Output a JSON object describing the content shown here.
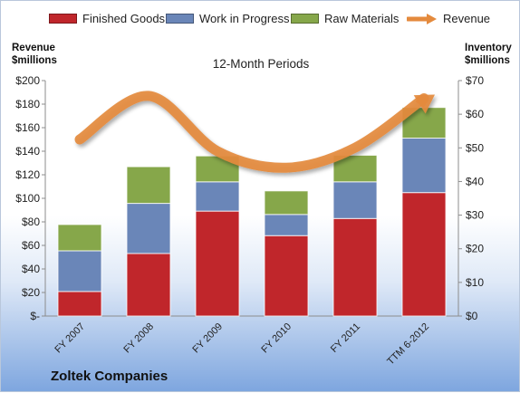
{
  "legend": {
    "finished": "Finished Goods",
    "wip": "Work in Progress",
    "raw": "Raw Materials",
    "revenue": "Revenue"
  },
  "axis": {
    "left_title_1": "Revenue",
    "left_title_2": "$millions",
    "right_title_1": "Inventory",
    "right_title_2": "$millions"
  },
  "title": "12-Month Periods",
  "company": "Zoltek Companies",
  "colors": {
    "finished": "#c0262b",
    "wip": "#6a86b8",
    "raw": "#86a74a",
    "revenue": "#e48a3d"
  },
  "chart_data": {
    "type": "bar",
    "stacked": true,
    "categories": [
      "FY 2007",
      "FY 2008",
      "FY 2009",
      "FY 2010",
      "FY 2011",
      "TTM 6-2012"
    ],
    "series": [
      {
        "name": "Finished Goods",
        "axis": "right",
        "values": [
          7.3,
          18.6,
          31.2,
          23.9,
          29.0,
          36.7
        ]
      },
      {
        "name": "Work in Progress",
        "axis": "right",
        "values": [
          12.1,
          14.9,
          8.7,
          6.3,
          10.9,
          16.2
        ]
      },
      {
        "name": "Raw Materials",
        "axis": "right",
        "values": [
          7.8,
          10.9,
          7.7,
          7.0,
          7.9,
          9.1
        ]
      },
      {
        "name": "Revenue",
        "axis": "left",
        "type": "line",
        "values": [
          150,
          187,
          140,
          126,
          143,
          185
        ]
      }
    ],
    "left_axis": {
      "ylim": [
        0,
        200
      ],
      "ticks": [
        "$-",
        "$20",
        "$40",
        "$60",
        "$80",
        "$100",
        "$120",
        "$140",
        "$160",
        "$180",
        "$200"
      ]
    },
    "right_axis": {
      "ylim": [
        0,
        70
      ],
      "ticks": [
        "$0",
        "$10",
        "$20",
        "$30",
        "$40",
        "$50",
        "$60",
        "$70"
      ]
    },
    "grid": false,
    "legend_position": "top"
  }
}
